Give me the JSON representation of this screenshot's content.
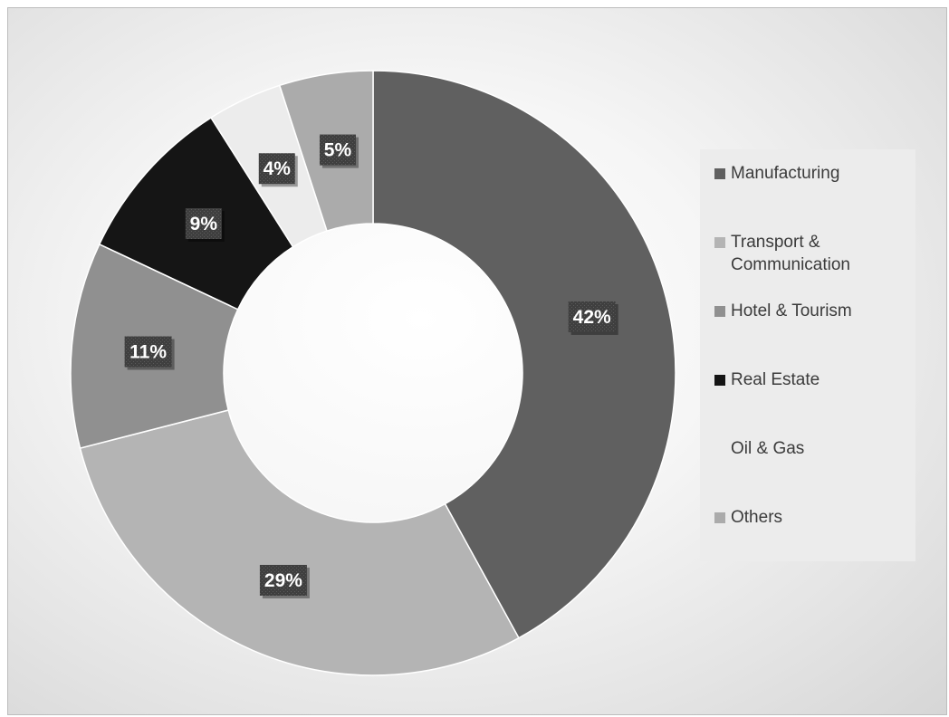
{
  "chart_data": {
    "type": "pie",
    "donut": true,
    "title": "",
    "slices": [
      {
        "label": "Manufacturing",
        "value": 42,
        "color": "#606060"
      },
      {
        "label": "Transport & Communication",
        "value": 29,
        "color": "#b4b4b4"
      },
      {
        "label": "Hotel & Tourism",
        "value": 11,
        "color": "#909090"
      },
      {
        "label": "Real Estate",
        "value": 9,
        "color": "#151515"
      },
      {
        "label": "Oil & Gas",
        "value": 4,
        "color": "#ececec"
      },
      {
        "label": "Others",
        "value": 5,
        "color": "#ababab"
      }
    ],
    "data_labels": [
      "42%",
      "29%",
      "11%",
      "9%",
      "4%",
      "5%"
    ],
    "legend": {
      "position": "right",
      "entries": [
        "Manufacturing",
        "Transport & Communication",
        "Hotel & Tourism",
        "Real Estate",
        "Oil & Gas",
        "Others"
      ]
    }
  }
}
